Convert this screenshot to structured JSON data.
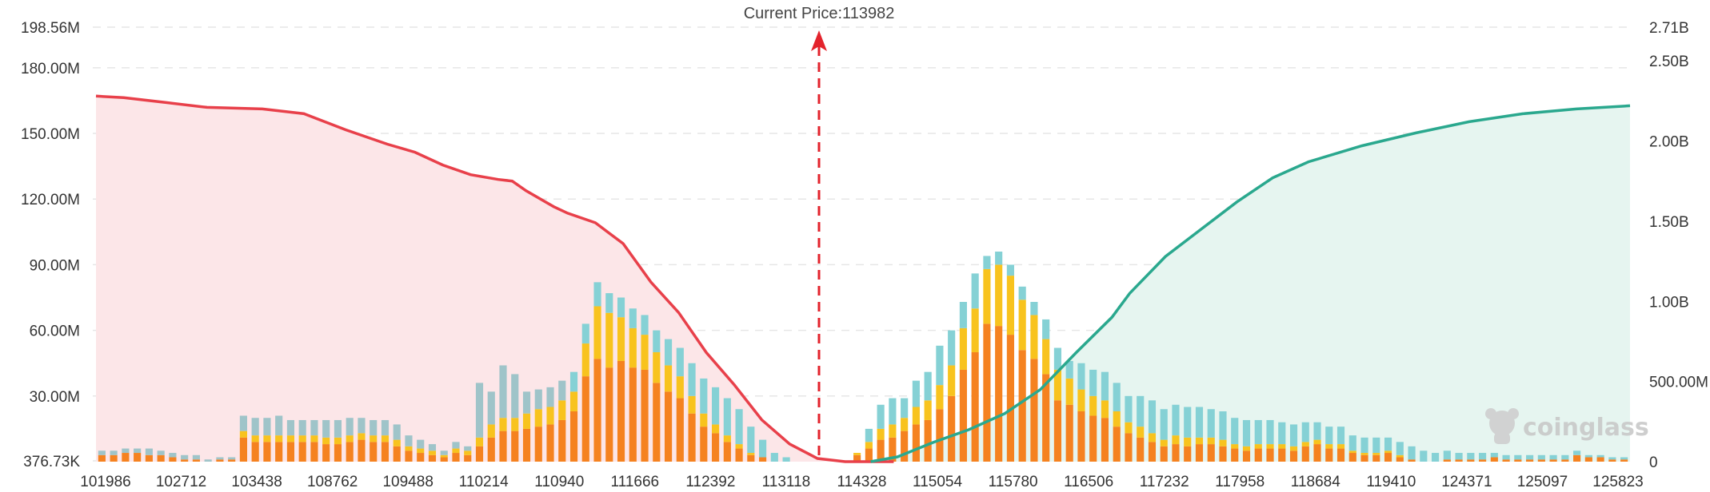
{
  "chart_data": {
    "type": "bar",
    "title": "",
    "current_price_label": "Current Price:113982",
    "current_price": 113982,
    "watermark": "coinglass",
    "left_axis": {
      "ticks": [
        "376.73K",
        "30.00M",
        "60.00M",
        "90.00M",
        "120.00M",
        "150.00M",
        "180.00M",
        "198.56M"
      ],
      "values": [
        376730,
        30000000,
        60000000,
        90000000,
        120000000,
        150000000,
        180000000,
        198560000
      ],
      "ylim": [
        376730,
        198560000
      ]
    },
    "right_axis": {
      "ticks": [
        "0",
        "500.00M",
        "1.00B",
        "1.50B",
        "2.00B",
        "2.50B",
        "2.71B"
      ],
      "values": [
        0,
        500000000,
        1000000000,
        1500000000,
        2000000000,
        2500000000,
        2710000000
      ],
      "ylim": [
        0,
        2710000000
      ]
    },
    "x_tick_labels": [
      "101986",
      "102712",
      "103438",
      "108762",
      "109488",
      "110214",
      "110940",
      "111666",
      "112392",
      "113118",
      "114328",
      "115054",
      "115780",
      "116506",
      "117232",
      "117958",
      "118684",
      "119410",
      "124371",
      "125097",
      "125823"
    ],
    "colors": {
      "short_curve": "#e8404a",
      "short_fill": "#fce6e8",
      "long_curve": "#2aa88e",
      "long_fill": "#e6f5f0",
      "bar_low": "#f58220",
      "bar_mid": "#f8c31e",
      "bar_high": "#85d1d5",
      "bar_high_left_edge": "#9fc4c9",
      "current_price_line": "#e3232c",
      "grid": "#e6e6e6"
    },
    "series": [
      {
        "name": "bar_low",
        "values": [
          3,
          3,
          4,
          4,
          3,
          3,
          2,
          1,
          1,
          0,
          1,
          1,
          11,
          9,
          9,
          9,
          9,
          9,
          9,
          8,
          8,
          9,
          10,
          9,
          9,
          7,
          5,
          4,
          3,
          2,
          4,
          3,
          7,
          11,
          14,
          14,
          15,
          16,
          17,
          19,
          23,
          39,
          47,
          43,
          46,
          43,
          42,
          36,
          32,
          29,
          22,
          16,
          13,
          9,
          6,
          3,
          2,
          0,
          0,
          0,
          0,
          0,
          0,
          0,
          3,
          6,
          10,
          11,
          14,
          17,
          19,
          24,
          30,
          42,
          50,
          63,
          62,
          58,
          51,
          47,
          40,
          28,
          26,
          23,
          21,
          20,
          16,
          13,
          11,
          9,
          7,
          8,
          7,
          8,
          8,
          7,
          6,
          5,
          6,
          6,
          6,
          5,
          7,
          8,
          6,
          6,
          4,
          3,
          3,
          4,
          2,
          1,
          0,
          0,
          1,
          1,
          1,
          1,
          2,
          1,
          1,
          1,
          1,
          1,
          1,
          3,
          2,
          2,
          1,
          1
        ]
      },
      {
        "name": "bar_mid",
        "values": [
          0,
          0,
          0,
          0,
          0,
          0,
          0,
          0,
          0,
          0,
          0,
          0,
          3,
          3,
          3,
          3,
          3,
          3,
          3,
          3,
          3,
          3,
          3,
          3,
          3,
          3,
          2,
          2,
          2,
          1,
          2,
          2,
          4,
          6,
          6,
          6,
          7,
          8,
          8,
          9,
          9,
          15,
          24,
          25,
          20,
          18,
          16,
          14,
          12,
          10,
          8,
          6,
          4,
          3,
          2,
          1,
          0,
          0,
          0,
          0,
          0,
          0,
          0,
          0,
          1,
          3,
          5,
          6,
          6,
          8,
          9,
          11,
          14,
          19,
          20,
          25,
          28,
          27,
          23,
          20,
          16,
          14,
          12,
          10,
          9,
          8,
          7,
          5,
          5,
          4,
          3,
          4,
          4,
          3,
          3,
          3,
          2,
          2,
          2,
          2,
          2,
          2,
          2,
          2,
          2,
          2,
          1,
          1,
          1,
          1,
          1,
          0,
          0,
          0,
          0,
          0,
          0,
          0,
          0,
          0,
          0,
          0,
          0,
          0,
          0,
          0,
          0,
          0,
          0,
          0
        ]
      },
      {
        "name": "bar_high",
        "values": [
          2,
          2,
          2,
          2,
          3,
          2,
          2,
          2,
          2,
          1,
          1,
          1,
          7,
          8,
          8,
          9,
          7,
          7,
          7,
          8,
          8,
          8,
          7,
          7,
          7,
          7,
          5,
          4,
          3,
          2,
          3,
          2,
          25,
          15,
          24,
          20,
          10,
          9,
          9,
          9,
          9,
          9,
          11,
          9,
          9,
          9,
          9,
          10,
          12,
          13,
          15,
          16,
          17,
          17,
          16,
          12,
          8,
          4,
          2,
          0,
          0,
          0,
          0,
          0,
          0,
          6,
          11,
          12,
          9,
          12,
          13,
          18,
          16,
          12,
          16,
          6,
          6,
          5,
          6,
          6,
          9,
          10,
          8,
          12,
          12,
          13,
          13,
          12,
          14,
          15,
          14,
          14,
          14,
          14,
          13,
          13,
          12,
          12,
          11,
          11,
          10,
          10,
          9,
          8,
          8,
          8,
          7,
          7,
          7,
          6,
          6,
          6,
          5,
          4,
          4,
          3,
          3,
          3,
          2,
          2,
          2,
          2,
          2,
          2,
          2,
          2,
          1,
          1,
          1,
          1
        ]
      }
    ]
  }
}
